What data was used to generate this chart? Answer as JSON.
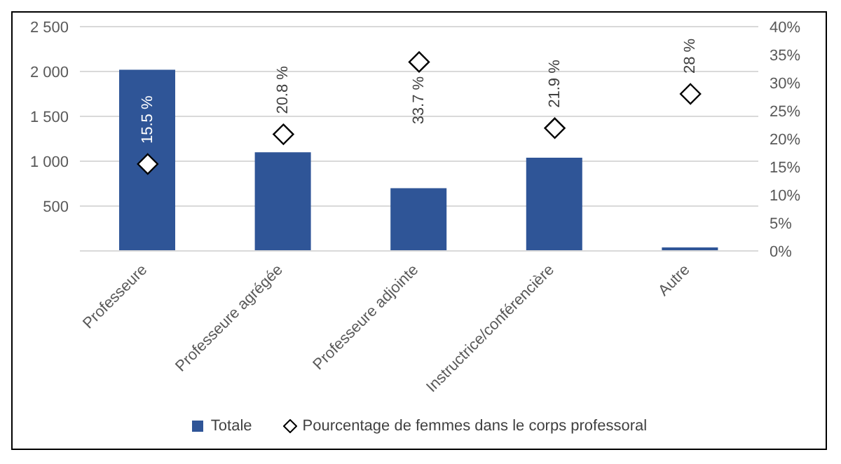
{
  "chart_data": {
    "type": "bar",
    "categories": [
      "Professeure",
      "Professeure agrégée",
      "Professeure adjointe",
      "Instructrice/conférencière",
      "Autre"
    ],
    "series": [
      {
        "name": "Totale",
        "color": "#2f5597",
        "values": [
          2020,
          1100,
          700,
          1040,
          40
        ]
      },
      {
        "name": "Pourcentage de femmes dans le corps professoral",
        "type": "scatter",
        "axis": "y2",
        "color": "#000000",
        "marker": "diamond",
        "values": [
          15.5,
          20.8,
          33.7,
          21.9,
          28
        ],
        "value_labels": [
          "15.5 %",
          "20.8 %",
          "33.7 %",
          "21.9 %",
          "28 %"
        ]
      }
    ],
    "ylim": [
      0,
      2500
    ],
    "yticks": [
      {
        "value": 0,
        "label": null
      },
      {
        "value": 500,
        "label": "500"
      },
      {
        "value": 1000,
        "label": "1 000"
      },
      {
        "value": 1500,
        "label": "1 500"
      },
      {
        "value": 2000,
        "label": "2 000"
      },
      {
        "value": 2500,
        "label": "2 500"
      }
    ],
    "y2lim": [
      0,
      40
    ],
    "y2ticks": [
      {
        "value": 0,
        "label": "0%"
      },
      {
        "value": 5,
        "label": "5%"
      },
      {
        "value": 10,
        "label": "10%"
      },
      {
        "value": 15,
        "label": "15%"
      },
      {
        "value": 20,
        "label": "20%"
      },
      {
        "value": 25,
        "label": "25%"
      },
      {
        "value": 30,
        "label": "30%"
      },
      {
        "value": 35,
        "label": "35%"
      },
      {
        "value": 40,
        "label": "40%"
      }
    ],
    "grid": "y",
    "legend": "bottom"
  }
}
